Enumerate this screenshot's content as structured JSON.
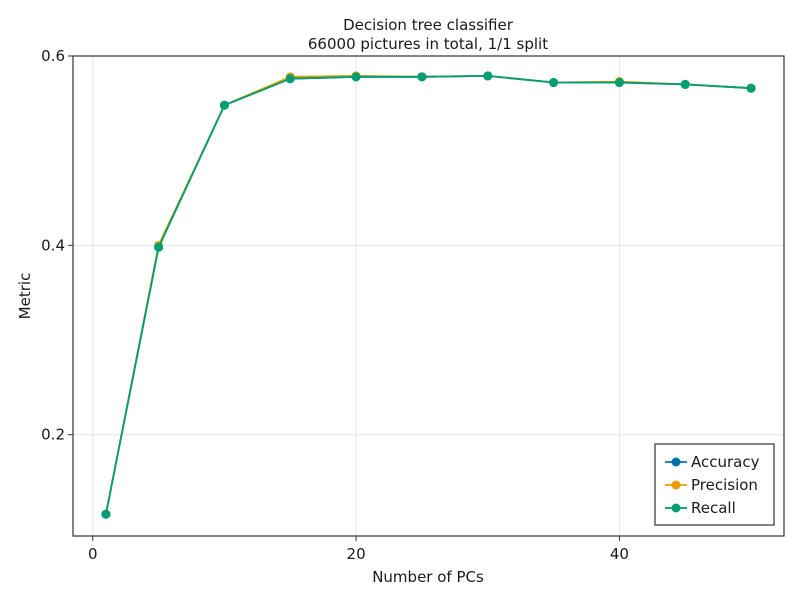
{
  "chart_data": {
    "type": "line",
    "title": "Decision tree classifier",
    "subtitle": "66000 pictures in total, 1/1 split",
    "xlabel": "Number of PCs",
    "ylabel": "Metric",
    "xlim": [
      -1.5,
      52.5
    ],
    "ylim": [
      0.093,
      0.6
    ],
    "xticks": [
      0,
      20,
      40
    ],
    "yticks": [
      0.2,
      0.4,
      0.6
    ],
    "xtick_labels": [
      "0",
      "20",
      "40"
    ],
    "ytick_labels": [
      "0.2",
      "0.4",
      "0.6"
    ],
    "grid": true,
    "legend_position": "bottom-right",
    "x": [
      1,
      5,
      10,
      15,
      20,
      25,
      30,
      35,
      40,
      45,
      50
    ],
    "series": [
      {
        "name": "Accuracy",
        "color": "#0072b2",
        "values": [
          0.116,
          0.398,
          0.548,
          0.576,
          0.578,
          0.578,
          0.579,
          0.572,
          0.572,
          0.57,
          0.566
        ]
      },
      {
        "name": "Precision",
        "color": "#e69f00",
        "values": [
          0.116,
          0.4,
          0.548,
          0.578,
          0.579,
          0.578,
          0.579,
          0.572,
          0.573,
          0.57,
          0.566
        ]
      },
      {
        "name": "Recall",
        "color": "#009e73",
        "values": [
          0.116,
          0.398,
          0.548,
          0.576,
          0.578,
          0.578,
          0.579,
          0.572,
          0.572,
          0.57,
          0.566
        ]
      }
    ]
  }
}
